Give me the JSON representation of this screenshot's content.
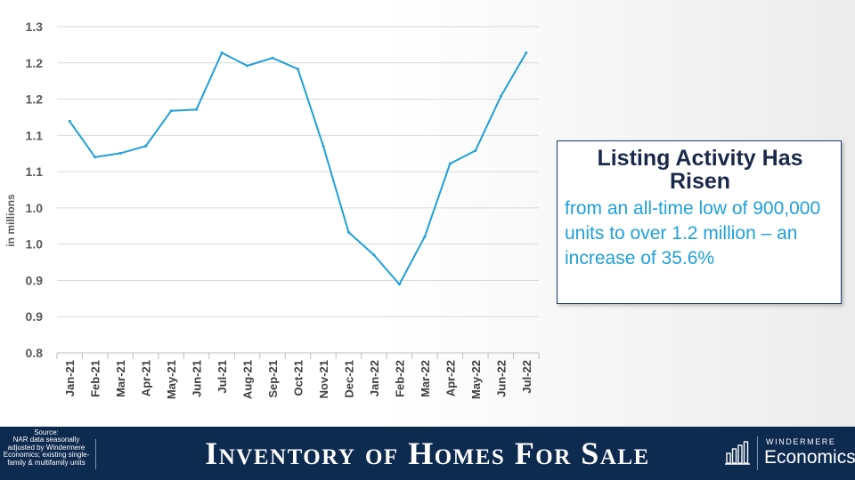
{
  "chart_data": {
    "type": "line",
    "ylabel": "in millions",
    "ylim": [
      0.8,
      1.3
    ],
    "ytick_labels": [
      "1.3",
      "1.2",
      "1.2",
      "1.1",
      "1.1",
      "1.0",
      "1.0",
      "0.9",
      "0.9",
      "0.8"
    ],
    "categories": [
      "Jan-21",
      "Feb-21",
      "Mar-21",
      "Apr-21",
      "May-21",
      "Jun-21",
      "Jul-21",
      "Aug-21",
      "Sep-21",
      "Oct-21",
      "Nov-21",
      "Dec-21",
      "Jan-22",
      "Feb-22",
      "Mar-22",
      "Apr-22",
      "May-22",
      "Jun-22",
      "Jul-22"
    ],
    "series": [
      {
        "values": [
          1.155,
          1.1,
          1.106,
          1.117,
          1.171,
          1.173,
          1.26,
          1.24,
          1.252,
          1.235,
          1.117,
          0.985,
          0.95,
          0.905,
          0.978,
          1.09,
          1.11,
          1.193,
          1.26
        ]
      }
    ],
    "grid": true,
    "color": "#1fa0d8"
  },
  "callout": {
    "title": "Listing Activity Has Risen",
    "body": "from an all-time low of 900,000 units to over 1.2 million – an increase of 35.6%"
  },
  "footer": {
    "source": "Source:\nNAR data seasonally adjusted by Windermere Economics; existing single-family & multifamily units",
    "title": "Inventory of Homes For Sale",
    "logo_top": "WINDERMERE",
    "logo_bottom": "Economics"
  }
}
